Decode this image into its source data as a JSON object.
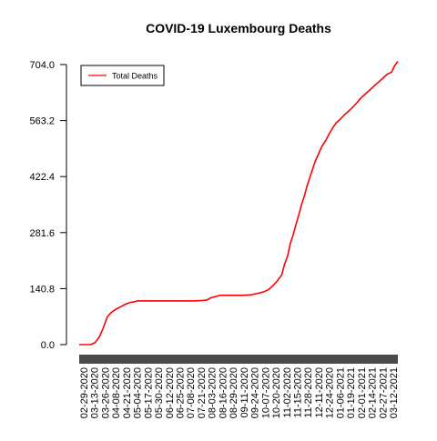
{
  "chart_data": {
    "type": "line",
    "title": "COVID-19 Luxembourg Deaths",
    "xlabel": "",
    "ylabel": "",
    "ylim": [
      0,
      704
    ],
    "yticks": [
      "0.0",
      "140.8",
      "281.6",
      "422.4",
      "563.2",
      "704.0"
    ],
    "ytick_values": [
      0,
      140.8,
      281.6,
      422.4,
      563.2,
      704
    ],
    "xtick_labels": [
      "02-29-2020",
      "03-13-2020",
      "03-26-2020",
      "04-08-2020",
      "04-21-2020",
      "05-04-2020",
      "05-17-2020",
      "05-30-2020",
      "06-12-2020",
      "06-25-2020",
      "07-08-2020",
      "07-21-2020",
      "08-03-2020",
      "08-16-2020",
      "08-29-2020",
      "09-11-2020",
      "09-24-2020",
      "10-07-2020",
      "10-20-2020",
      "11-02-2020",
      "11-15-2020",
      "11-28-2020",
      "12-11-2020",
      "12-24-2020",
      "01-06-2021",
      "01-19-2021",
      "02-01-2021",
      "02-14-2021",
      "02-27-2021",
      "03-12-2021"
    ],
    "legend": {
      "position": "top-left",
      "entries": [
        {
          "label": "Total Deaths",
          "color": "#ff0000"
        }
      ]
    },
    "grid": false,
    "series": [
      {
        "name": "Total Deaths",
        "color": "#ff0000",
        "x_days": [
          0,
          13,
          18,
          23,
          27,
          32,
          36,
          41,
          47,
          53,
          58,
          63,
          66,
          70,
          75,
          80,
          88,
          100,
          115,
          130,
          140,
          145,
          150,
          155,
          160,
          165,
          175,
          185,
          195,
          205,
          210,
          215,
          220,
          225,
          230,
          233,
          237,
          240,
          243,
          246,
          250,
          253,
          256,
          259,
          262,
          265,
          268,
          272,
          276,
          280,
          284,
          288,
          292,
          296,
          300,
          305,
          310,
          315,
          320,
          325,
          330,
          335,
          340,
          345,
          350,
          355,
          358,
          362
        ],
        "values": [
          0,
          0,
          5,
          20,
          40,
          70,
          80,
          88,
          95,
          102,
          106,
          108,
          110,
          110,
          110,
          110,
          110,
          110,
          110,
          110,
          111,
          112,
          118,
          121,
          124,
          124,
          124,
          124,
          125,
          130,
          133,
          138,
          148,
          160,
          175,
          200,
          225,
          255,
          275,
          300,
          330,
          355,
          375,
          400,
          420,
          440,
          460,
          480,
          500,
          513,
          530,
          545,
          558,
          565,
          575,
          585,
          595,
          607,
          620,
          630,
          640,
          650,
          660,
          670,
          680,
          685,
          700,
          712
        ]
      }
    ]
  }
}
